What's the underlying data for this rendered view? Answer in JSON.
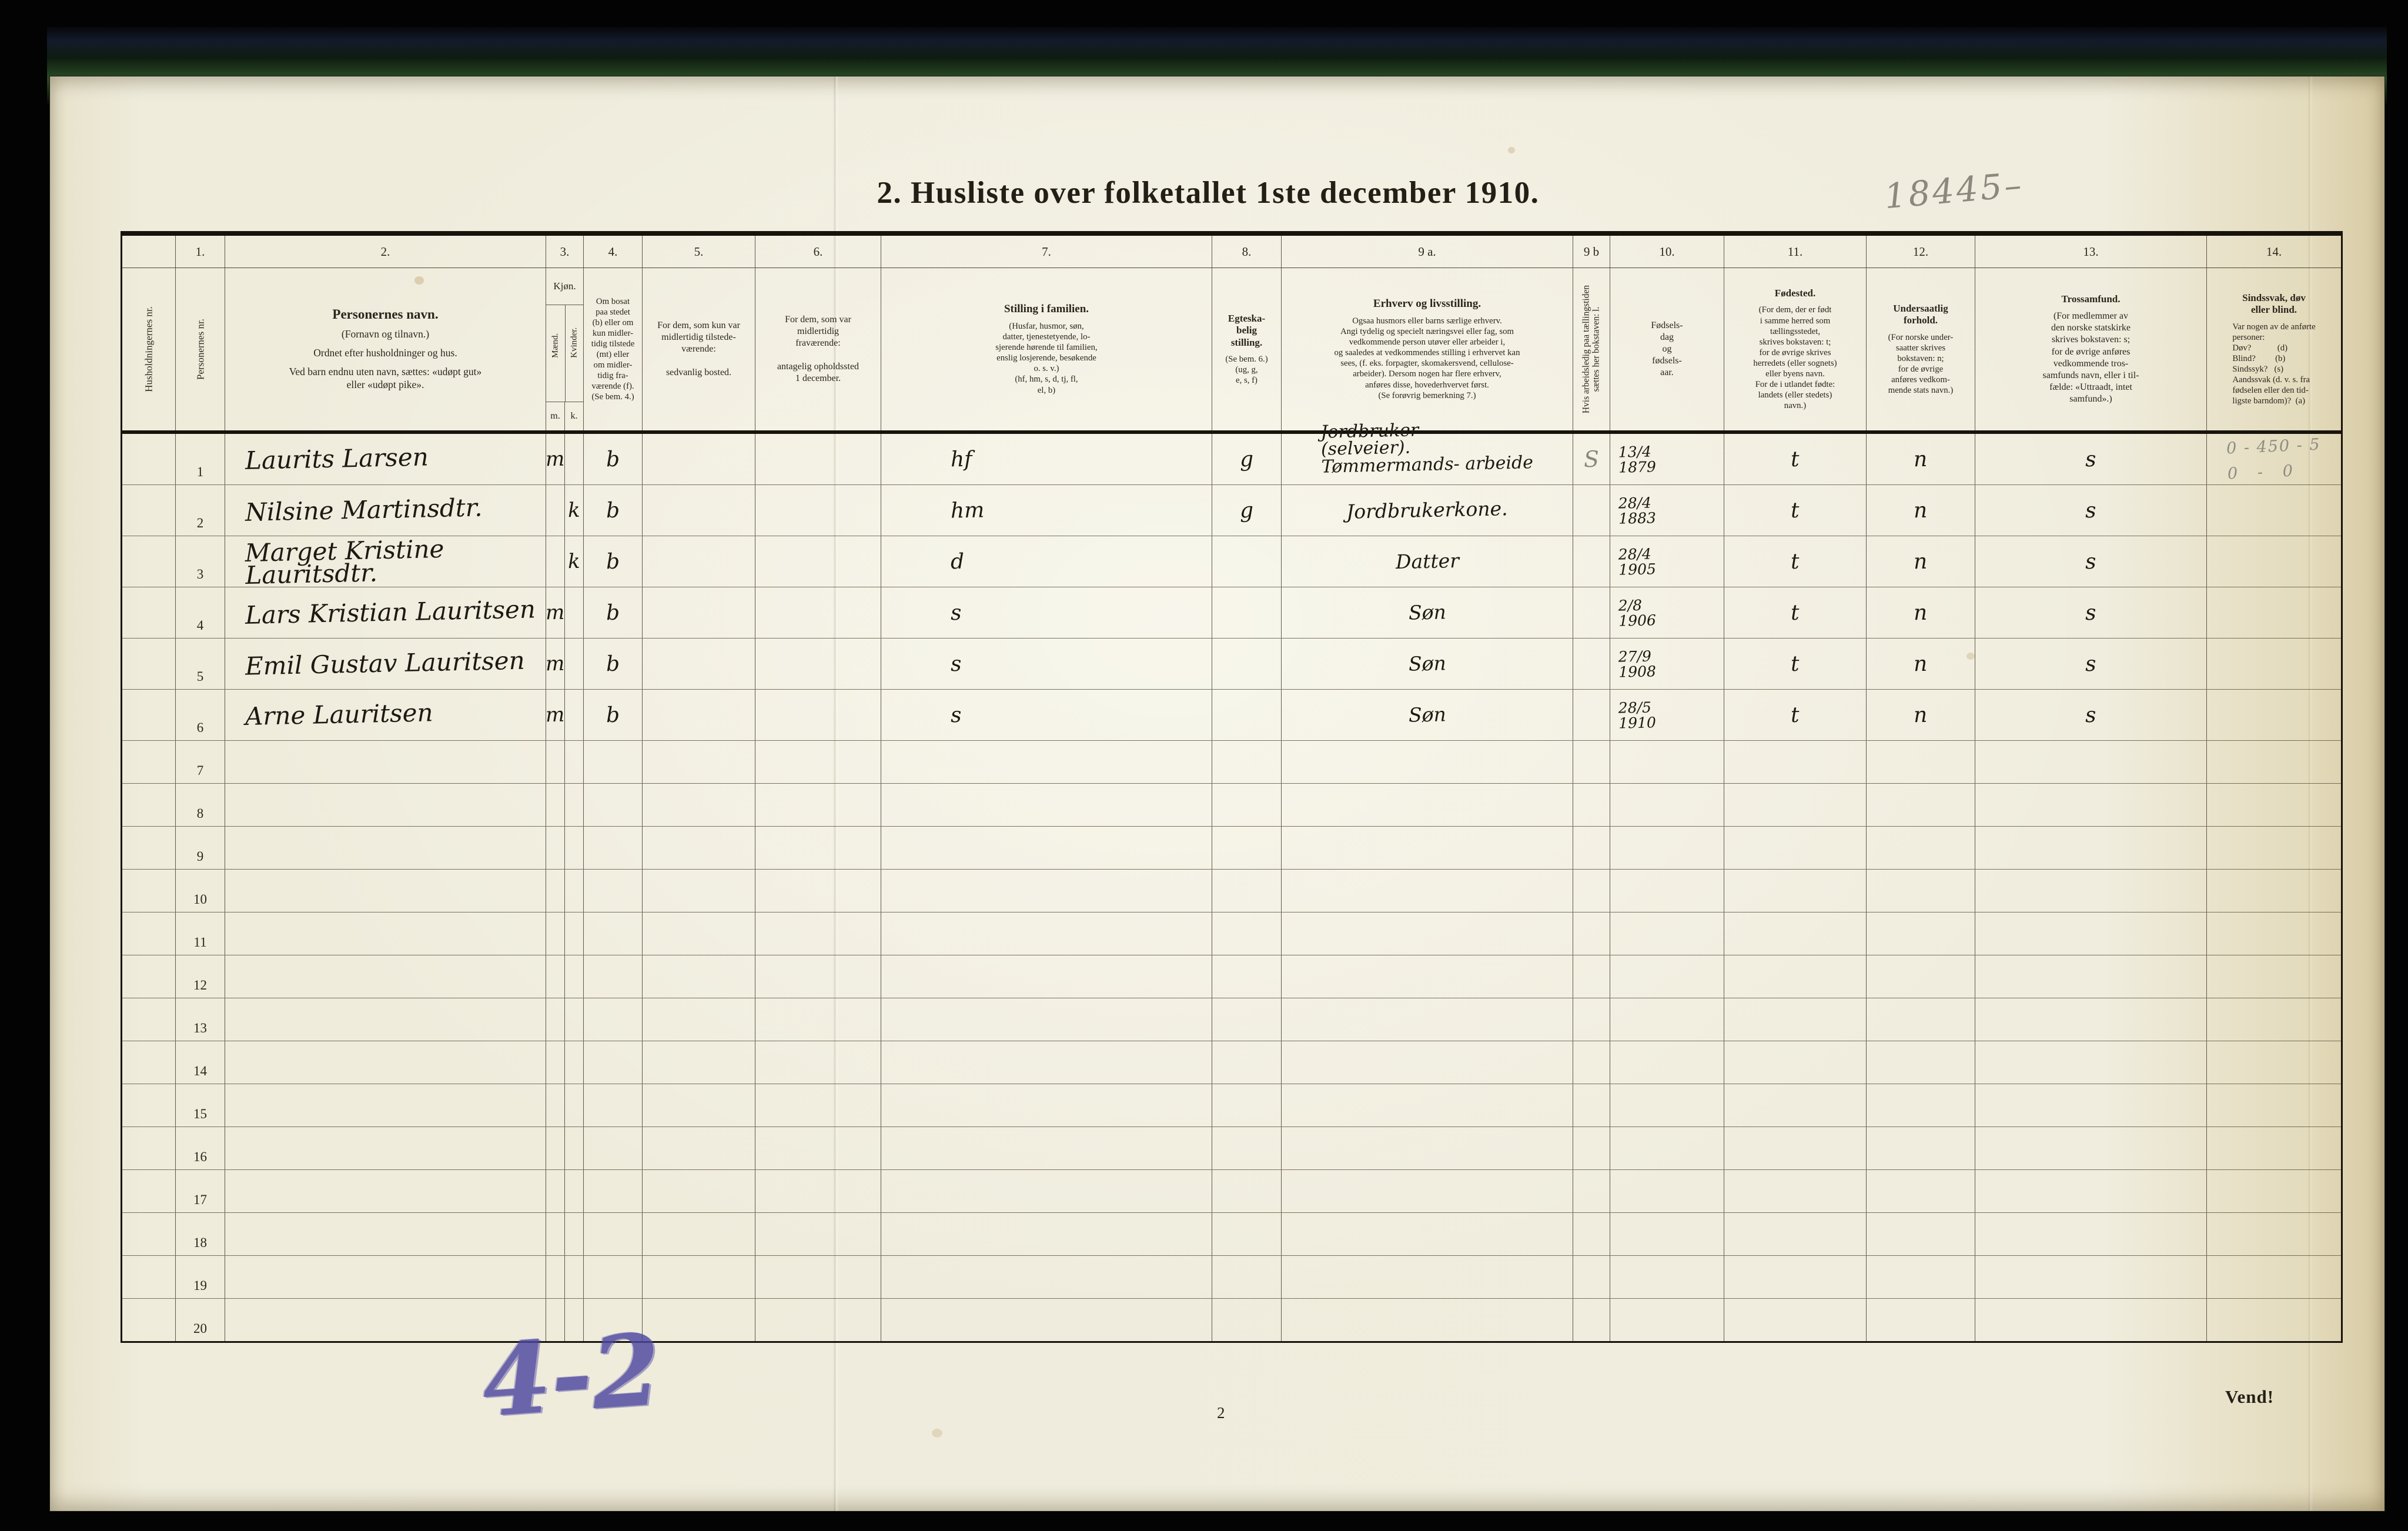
{
  "page": {
    "title": "2. Husliste over folketallet 1ste december 1910.",
    "page_number": "2",
    "turn_note": "Vend!",
    "annotations": {
      "top_right_pencil": "18445–",
      "bottom_left_pen": "4-2"
    }
  },
  "table": {
    "column_numbers": {
      "c1": "1.",
      "c2": "2.",
      "c3": "3.",
      "c4": "4.",
      "c5": "5.",
      "c6": "6.",
      "c7": "7.",
      "c8": "8.",
      "c9a": "9 a.",
      "c9b": "9 b",
      "c10": "10.",
      "c11": "11.",
      "c12": "12.",
      "c13": "13.",
      "c14": "14."
    },
    "headers": {
      "household_no": "Husholdningernes nr.",
      "person_no": "Personernes nr.",
      "name_title": "Personernes navn.",
      "name_sub1": "(Fornavn og tilnavn.)",
      "name_sub2": "Ordnet efter husholdninger og hus.",
      "name_sub3": "Ved barn endnu uten navn, sættes: «udøpt gut»\neller «udøpt pike».",
      "sex_title": "Kjøn.",
      "sex_male": "Mænd.",
      "sex_female": "Kvinder.",
      "sex_m_abbr": "m.",
      "sex_k_abbr": "k.",
      "resident": "Om bosat\npaa stedet\n(b) eller om\nkun midler-\ntidig tilstede\n(mt) eller\nom midler-\ntidig fra-\nværende (f).\n(Se bem. 4.)",
      "temporarily_present": "For dem, som kun var\nmidlertidig tilstede-\nværende:\n\nsedvanlig bosted.",
      "temporarily_absent": "For dem, som var\nmidlertidig\nfraværende:\n\nantagelig opholdssted\n1 december.",
      "family_position_title": "Stilling i familien.",
      "family_position_body": "(Husfar, husmor, søn,\ndatter, tjenestetyende, lo-\nsjerende hørende til familien,\nenslig losjerende, besøkende\no. s. v.)\n(hf, hm, s, d, tj, fl,\nel, b)",
      "marital_title": "Egteska-\nbelig\nstilling.",
      "marital_body": "(Se bem. 6.)\n(ug, g,\ne, s, f)",
      "occupation_title": "Erhverv og livsstilling.",
      "occupation_body": "Ogsaa husmors eller barns særlige erhverv.\nAngi tydelig og specielt næringsvei eller fag, som\nvedkommende person utøver eller arbeider i,\nog saaledes at vedkommendes stilling i erhvervet kan\nsees, (f. eks. forpagter, skomakersvend, cellulose-\narbeider).  Dersom nogen har flere erhverv,\nanføres disse, hovederhvervet først.\n(Se forøvrig bemerkning 7.)",
      "unemployed_vertical": "Hvis arbeidsledig paa tællingstiden sættes her bokstaven: l.",
      "birthdate": "Fødsels-\ndag\nog\nfødsels-\naar.",
      "birthplace_title": "Fødested.",
      "birthplace_body": "(For dem, der er født\ni samme herred som\ntællingsstedet,\nskrives bokstaven: t;\nfor de øvrige skrives\nherredets (eller sognets)\neller byens navn.\nFor de i utlandet fødte:\nlandets (eller stedets)\nnavn.)",
      "citizenship_title": "Undersaatlig\nforhold.",
      "citizenship_body": "(For norske under-\nsaatter skrives\nbokstaven: n;\nfor de øvrige\nanføres vedkom-\nmende stats navn.)",
      "religion_title": "Trossamfund.",
      "religion_body": "(For medlemmer av\nden norske statskirke\nskrives bokstaven: s;\nfor de øvrige anføres\nvedkommende tros-\nsamfunds navn, eller i til-\nfælde: «Uttraadt, intet\nsamfund».)",
      "disability_title": "Sindssvak, døv\neller blind.",
      "disability_body": "Var nogen av de anførte\npersoner:\nDøv?            (d)\nBlind?         (b)\nSindssyk?   (s)\nAandssvak (d. v. s. fra\nfødselen eller den tid-\nligste barndom)?  (a)"
    },
    "rows": [
      {
        "no": "1",
        "hh": "",
        "name": "Laurits Larsen",
        "m": "m",
        "k": "",
        "bosat": "b",
        "tilst": "",
        "frav": "",
        "stilling": "hf",
        "egteskap": "g",
        "erhverv": "Jordbruker\n(selveier).\nTømmermands- arbeide",
        "ledig": "S",
        "fodt": "13/4\n1879",
        "fodested": "t",
        "undersaat": "n",
        "tros": "s",
        "sind": "0 -  450 - 5\n0   -   0"
      },
      {
        "no": "2",
        "hh": "",
        "name": "Nilsine Martinsdtr.",
        "m": "",
        "k": "k",
        "bosat": "b",
        "tilst": "",
        "frav": "",
        "stilling": "hm",
        "egteskap": "g",
        "erhverv": "Jordbrukerkone.",
        "ledig": "",
        "fodt": "28/4\n1883",
        "fodested": "t",
        "undersaat": "n",
        "tros": "s",
        "sind": ""
      },
      {
        "no": "3",
        "hh": "",
        "name": "Marget Kristine Lauritsdtr.",
        "m": "",
        "k": "k",
        "bosat": "b",
        "tilst": "",
        "frav": "",
        "stilling": "d",
        "egteskap": "",
        "erhverv": "Datter",
        "ledig": "",
        "fodt": "28/4\n1905",
        "fodested": "t",
        "undersaat": "n",
        "tros": "s",
        "sind": ""
      },
      {
        "no": "4",
        "hh": "",
        "name": "Lars Kristian Lauritsen",
        "m": "m",
        "k": "",
        "bosat": "b",
        "tilst": "",
        "frav": "",
        "stilling": "s",
        "egteskap": "",
        "erhverv": "Søn",
        "ledig": "",
        "fodt": "2/8\n1906",
        "fodested": "t",
        "undersaat": "n",
        "tros": "s",
        "sind": ""
      },
      {
        "no": "5",
        "hh": "",
        "name": "Emil Gustav Lauritsen",
        "m": "m",
        "k": "",
        "bosat": "b",
        "tilst": "",
        "frav": "",
        "stilling": "s",
        "egteskap": "",
        "erhverv": "Søn",
        "ledig": "",
        "fodt": "27/9\n1908",
        "fodested": "t",
        "undersaat": "n",
        "tros": "s",
        "sind": ""
      },
      {
        "no": "6",
        "hh": "",
        "name": "Arne Lauritsen",
        "m": "m",
        "k": "",
        "bosat": "b",
        "tilst": "",
        "frav": "",
        "stilling": "s",
        "egteskap": "",
        "erhverv": "Søn",
        "ledig": "",
        "fodt": "28/5\n1910",
        "fodested": "t",
        "undersaat": "n",
        "tros": "s",
        "sind": ""
      },
      {
        "no": "7"
      },
      {
        "no": "8"
      },
      {
        "no": "9"
      },
      {
        "no": "10"
      },
      {
        "no": "11"
      },
      {
        "no": "12"
      },
      {
        "no": "13"
      },
      {
        "no": "14"
      },
      {
        "no": "15"
      },
      {
        "no": "16"
      },
      {
        "no": "17"
      },
      {
        "no": "18"
      },
      {
        "no": "19"
      },
      {
        "no": "20"
      }
    ]
  }
}
